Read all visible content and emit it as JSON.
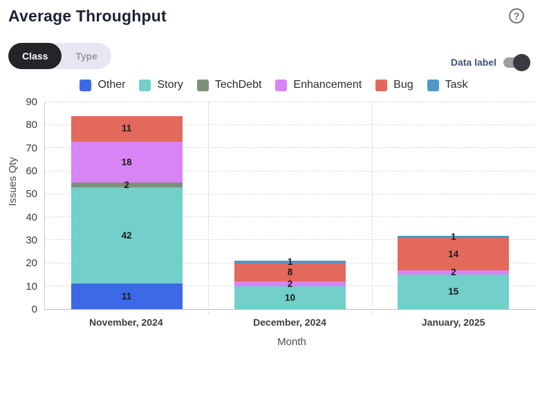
{
  "header": {
    "title": "Average Throughput",
    "help_icon": "question-mark-icon"
  },
  "controls": {
    "segments": [
      {
        "label": "Class",
        "selected": true
      },
      {
        "label": "Type",
        "selected": false
      }
    ],
    "data_label_toggle": {
      "label": "Data label",
      "on": true
    }
  },
  "legend": [
    {
      "label": "Other",
      "color": "#3c69e8"
    },
    {
      "label": "Story",
      "color": "#72cfc9"
    },
    {
      "label": "TechDebt",
      "color": "#7d9077"
    },
    {
      "label": "Enhancement",
      "color": "#d884f6"
    },
    {
      "label": "Bug",
      "color": "#e2695c"
    },
    {
      "label": "Task",
      "color": "#4e97c6"
    }
  ],
  "chart_data": {
    "type": "bar",
    "stacked": true,
    "title": "Average Throughput",
    "xlabel": "Month",
    "ylabel": "Issues Qty",
    "categories": [
      "November, 2024",
      "December, 2024",
      "January, 2025"
    ],
    "series": [
      {
        "name": "Other",
        "color": "#3c69e8",
        "values": [
          11,
          0,
          0
        ]
      },
      {
        "name": "Story",
        "color": "#72cfc9",
        "values": [
          42,
          10,
          15
        ]
      },
      {
        "name": "TechDebt",
        "color": "#7d9077",
        "values": [
          2,
          0,
          0
        ]
      },
      {
        "name": "Enhancement",
        "color": "#d884f6",
        "values": [
          18,
          2,
          2
        ]
      },
      {
        "name": "Bug",
        "color": "#e2695c",
        "values": [
          11,
          8,
          14
        ]
      },
      {
        "name": "Task",
        "color": "#4e97c6",
        "values": [
          0,
          1,
          1
        ]
      }
    ],
    "totals": [
      84,
      21,
      32
    ],
    "ylim": [
      0,
      90
    ],
    "yticks": [
      0,
      10,
      20,
      30,
      40,
      50,
      60,
      70,
      80,
      90
    ],
    "grid": true,
    "legend_position": "top",
    "data_labels": true
  }
}
